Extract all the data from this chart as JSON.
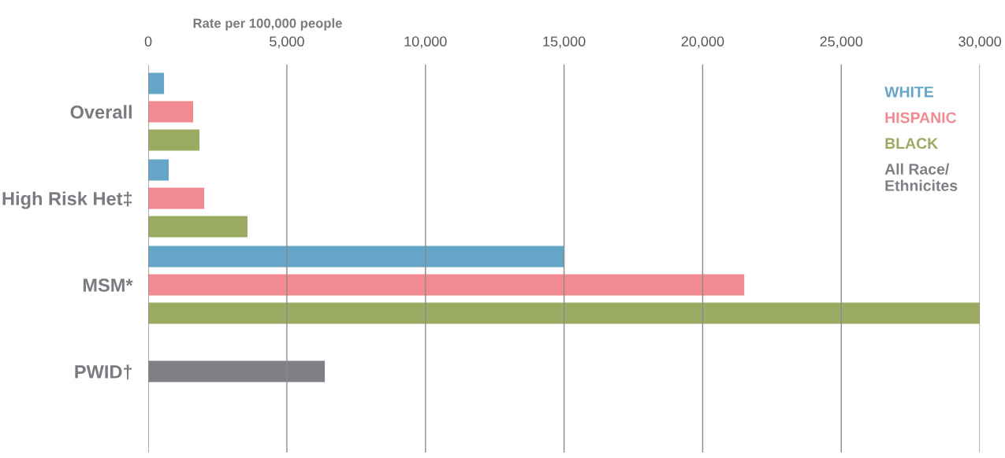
{
  "chart_data": {
    "type": "bar",
    "orientation": "horizontal",
    "xlabel": "Rate per 100,000 people",
    "categories": [
      "Overall",
      "High Risk Het‡",
      "MSM*",
      "PWID†"
    ],
    "series": [
      {
        "name": "WHITE",
        "color": "#65a5c8",
        "values": [
          570,
          740,
          15000,
          null
        ]
      },
      {
        "name": "HISPANIC",
        "color": "#f28a92",
        "values": [
          1620,
          2020,
          21500,
          null
        ]
      },
      {
        "name": "BLACK",
        "color": "#9bab64",
        "values": [
          1850,
          3580,
          30000,
          null
        ]
      },
      {
        "name": "All Race/Ethnicites",
        "color": "#817e86",
        "values": [
          null,
          null,
          null,
          6370
        ]
      }
    ],
    "xlim": [
      0,
      30000
    ],
    "xticks": [
      {
        "value": 0,
        "label": "0"
      },
      {
        "value": 5000,
        "label": "5,000"
      },
      {
        "value": 10000,
        "label": "10,000"
      },
      {
        "value": 15000,
        "label": "15,000"
      },
      {
        "value": 20000,
        "label": "20,000"
      },
      {
        "value": 25000,
        "label": "25,000"
      },
      {
        "value": 30000,
        "label": "30,000"
      }
    ],
    "grid": "x",
    "legend": "top right"
  }
}
